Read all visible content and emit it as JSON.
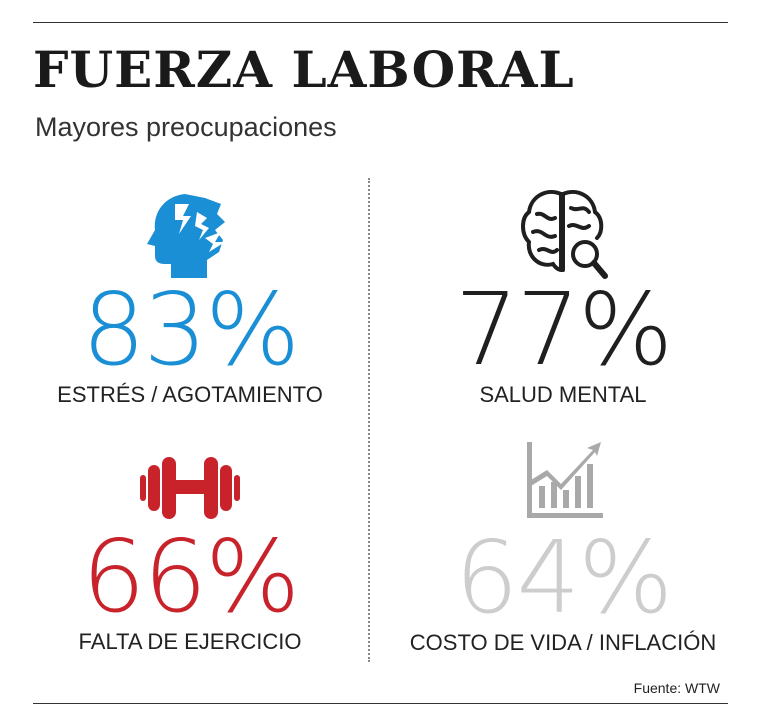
{
  "title": "FUERZA LABORAL",
  "subtitle": "Mayores preocupaciones",
  "items": [
    {
      "value": "83%",
      "label": "ESTRÉS / AGOTAMIENTO",
      "icon": "stressed-head-icon",
      "color": "#1b8fd5"
    },
    {
      "value": "77%",
      "label": "SALUD MENTAL",
      "icon": "brain-magnifier-icon",
      "color": "#1f1f1f"
    },
    {
      "value": "66%",
      "label": "FALTA DE EJERCICIO",
      "icon": "dumbbell-icon",
      "color": "#c8232b"
    },
    {
      "value": "64%",
      "label": "COSTO DE VIDA / INFLACIÓN",
      "icon": "rising-chart-icon",
      "color": "#cdcdcd"
    }
  ],
  "source": "Fuente: WTW"
}
